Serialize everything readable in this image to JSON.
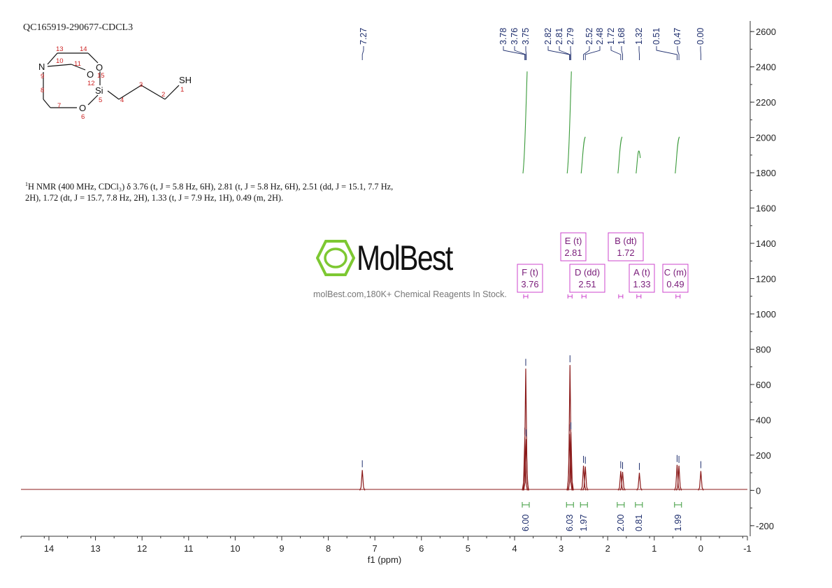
{
  "sample": {
    "title": "QC165919-290677-CDCL3"
  },
  "nmr_text": {
    "nucleus_sup": "1",
    "line1": "H NMR (400 MHz, CDCl₃) δ 3.76 (t, J = 5.8 Hz, 6H), 2.81 (t, J = 5.8 Hz, 6H), 2.51 (dd, J = 15.1, 7.7 Hz,",
    "line2": "2H), 1.72 (dt, J = 15.7, 7.8 Hz, 2H), 1.33 (t, J = 7.9 Hz, 1H), 0.49 (m, 2H)."
  },
  "watermark": {
    "logo_text": "MolBest",
    "tagline": "molBest.com,180K+ Chemical Reagents In Stock.",
    "logo_color": "#7dc832"
  },
  "structure": {
    "atoms": [
      {
        "label": "N",
        "num": "9"
      },
      {
        "label": "O",
        "num": "12"
      },
      {
        "label": "O",
        "num": "15"
      },
      {
        "label": "Si",
        "num": "5"
      },
      {
        "label": "O",
        "num": "6"
      },
      {
        "label": "SH",
        "num": "1"
      }
    ],
    "carbon_numbers": [
      "13",
      "14",
      "10",
      "11",
      "8",
      "7",
      "4",
      "3",
      "2"
    ]
  },
  "chart_data": {
    "type": "line",
    "xlabel": "f1 (ppm)",
    "xlim": [
      14.6,
      -1.0
    ],
    "ylim": [
      -260,
      2660
    ],
    "x_ticks": [
      14,
      13,
      12,
      11,
      10,
      9,
      8,
      7,
      6,
      5,
      4,
      3,
      2,
      1,
      0,
      -1
    ],
    "y_ticks": [
      2600,
      2400,
      2200,
      2000,
      1800,
      1600,
      1400,
      1200,
      1000,
      800,
      600,
      400,
      200,
      0,
      -200
    ],
    "peaks": [
      {
        "ppm": 7.27,
        "height": 115
      },
      {
        "ppm": 3.78,
        "height": 300
      },
      {
        "ppm": 3.76,
        "height": 690
      },
      {
        "ppm": 3.75,
        "height": 290
      },
      {
        "ppm": 2.82,
        "height": 320
      },
      {
        "ppm": 2.81,
        "height": 710
      },
      {
        "ppm": 2.79,
        "height": 330
      },
      {
        "ppm": 2.52,
        "height": 140
      },
      {
        "ppm": 2.48,
        "height": 135
      },
      {
        "ppm": 1.72,
        "height": 110
      },
      {
        "ppm": 1.68,
        "height": 105
      },
      {
        "ppm": 1.32,
        "height": 100
      },
      {
        "ppm": 0.51,
        "height": 145
      },
      {
        "ppm": 0.47,
        "height": 140
      },
      {
        "ppm": 0.0,
        "height": 110
      }
    ],
    "peak_labels": [
      "7.27",
      "3.78",
      "3.76",
      "3.75",
      "2.82",
      "2.81",
      "2.79",
      "2.52",
      "2.48",
      "1.72",
      "1.68",
      "1.32",
      "0.51",
      "0.47",
      "0.00"
    ],
    "multiplets": [
      {
        "letter": "F (t)",
        "shift": "3.76",
        "ppm": 3.76
      },
      {
        "letter": "E (t)",
        "shift": "2.81",
        "ppm": 2.81
      },
      {
        "letter": "D (dd)",
        "shift": "2.51",
        "ppm": 2.51
      },
      {
        "letter": "B (dt)",
        "shift": "1.72",
        "ppm": 1.72
      },
      {
        "letter": "A (t)",
        "shift": "1.33",
        "ppm": 1.33
      },
      {
        "letter": "C (m)",
        "shift": "0.49",
        "ppm": 0.49
      }
    ],
    "integrals": [
      {
        "ppm": 3.76,
        "value": "6.00"
      },
      {
        "ppm": 2.81,
        "value": "6.03"
      },
      {
        "ppm": 2.51,
        "value": "1.97"
      },
      {
        "ppm": 1.72,
        "value": "2.00"
      },
      {
        "ppm": 1.33,
        "value": "0.81"
      },
      {
        "ppm": 0.49,
        "value": "1.99"
      }
    ],
    "colors": {
      "spectrum": "#8b1a1a",
      "integral_curve": "#3a9a3a",
      "peak_label": "#1f2f6e",
      "multiplet_box": "#cc44cc"
    }
  }
}
